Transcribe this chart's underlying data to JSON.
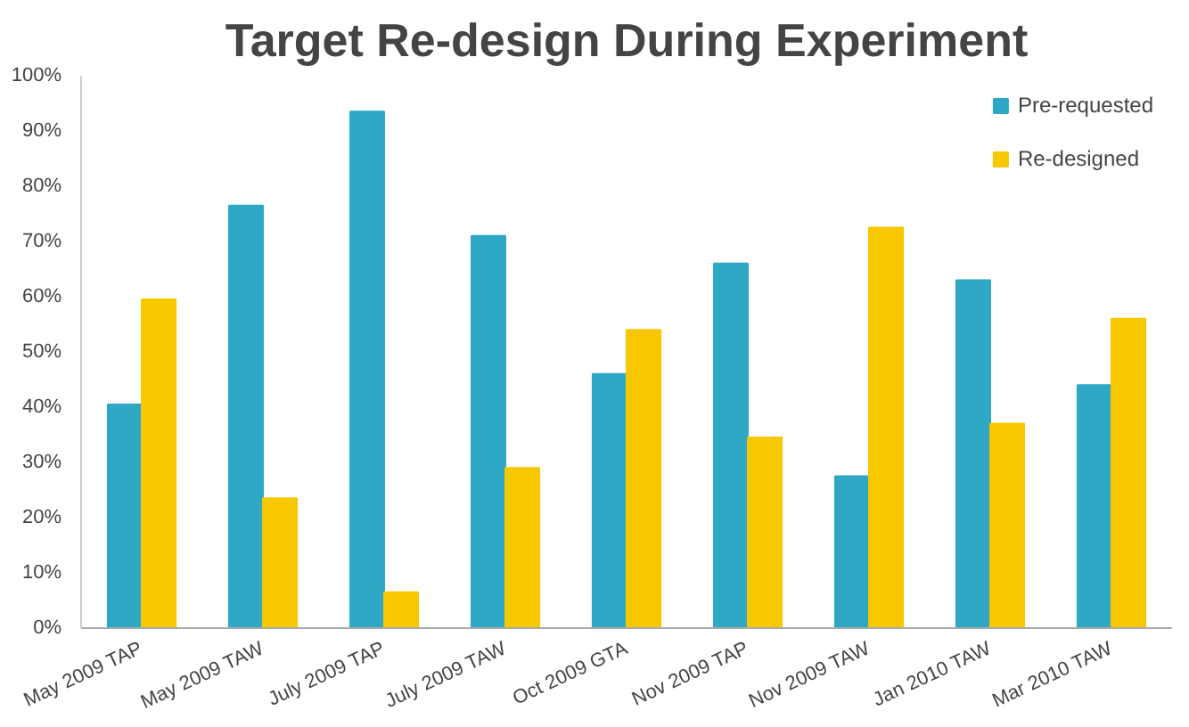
{
  "chart_data": {
    "type": "bar",
    "title": "Target Re-design During Experiment",
    "categories": [
      "May 2009 TAP",
      "May 2009 TAW",
      "July 2009 TAP",
      "July 2009 TAW",
      "Oct 2009 GTA",
      "Nov 2009 TAP",
      "Nov 2009 TAW",
      "Jan 2010 TAW",
      "Mar 2010 TAW"
    ],
    "series": [
      {
        "name": "Pre-requested",
        "color": "#2ea8c4",
        "values": [
          40.5,
          76.5,
          93.5,
          71,
          46,
          66,
          27.5,
          63,
          44
        ]
      },
      {
        "name": "Re-designed",
        "color": "#f7c800",
        "values": [
          59.5,
          23.5,
          6.5,
          29,
          54,
          34.5,
          72.5,
          37,
          56
        ]
      }
    ],
    "ylim": [
      0,
      100
    ],
    "yticks": [
      {
        "value": 0,
        "label": "0%"
      },
      {
        "value": 10,
        "label": "10%"
      },
      {
        "value": 20,
        "label": "20%"
      },
      {
        "value": 30,
        "label": "30%"
      },
      {
        "value": 40,
        "label": "40%"
      },
      {
        "value": 50,
        "label": "50%"
      },
      {
        "value": 60,
        "label": "60%"
      },
      {
        "value": 70,
        "label": "70%"
      },
      {
        "value": 80,
        "label": "80%"
      },
      {
        "value": 90,
        "label": "90%"
      },
      {
        "value": 100,
        "label": "100%"
      }
    ],
    "grid": false,
    "legend": "top right"
  }
}
